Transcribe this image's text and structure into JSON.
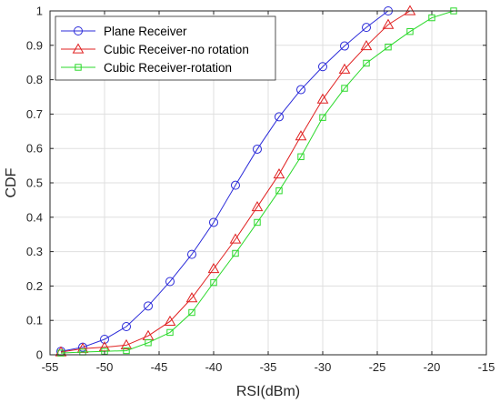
{
  "chart_data": {
    "type": "line",
    "xlabel": "RSI(dBm)",
    "ylabel": "CDF",
    "xlim": [
      -55,
      -15
    ],
    "ylim": [
      0,
      1
    ],
    "xticks": [
      -55,
      -50,
      -45,
      -40,
      -35,
      -30,
      -25,
      -20,
      -15
    ],
    "yticks": [
      0,
      0.1,
      0.2,
      0.3,
      0.4,
      0.5,
      0.6,
      0.7,
      0.8,
      0.9,
      1
    ],
    "xtick_labels": [
      "-55",
      "-50",
      "-45",
      "-40",
      "-35",
      "-30",
      "-25",
      "-20",
      "-15"
    ],
    "ytick_labels": [
      "0",
      "0.1",
      "0.2",
      "0.3",
      "0.4",
      "0.5",
      "0.6",
      "0.7",
      "0.8",
      "0.9",
      "1"
    ],
    "grid": true,
    "legend_position": "top-left",
    "series": [
      {
        "name": "Plane Receiver",
        "color": "#2b2bd9",
        "marker": "circle",
        "x": [
          -54,
          -52,
          -50,
          -48,
          -46,
          -44,
          -42,
          -40,
          -38,
          -36,
          -34,
          -32,
          -30,
          -28,
          -26,
          -24
        ],
        "y": [
          0.01,
          0.022,
          0.045,
          0.082,
          0.142,
          0.213,
          0.292,
          0.385,
          0.493,
          0.598,
          0.692,
          0.771,
          0.838,
          0.898,
          0.952,
          1.0
        ]
      },
      {
        "name": "Cubic Receiver-no rotation",
        "color": "#e02020",
        "marker": "triangle",
        "x": [
          -54,
          -52,
          -50,
          -48,
          -46,
          -44,
          -42,
          -40,
          -38,
          -36,
          -34,
          -32,
          -30,
          -28,
          -26,
          -24,
          -22
        ],
        "y": [
          0.008,
          0.018,
          0.022,
          0.028,
          0.055,
          0.097,
          0.165,
          0.25,
          0.336,
          0.43,
          0.525,
          0.636,
          0.743,
          0.83,
          0.898,
          0.96,
          1.0
        ]
      },
      {
        "name": "Cubic Receiver-rotation",
        "color": "#2bd92b",
        "marker": "square",
        "x": [
          -54,
          -52,
          -50,
          -48,
          -46,
          -44,
          -42,
          -40,
          -38,
          -36,
          -34,
          -32,
          -30,
          -28,
          -26,
          -24,
          -22,
          -20,
          -18
        ],
        "y": [
          0.005,
          0.008,
          0.01,
          0.012,
          0.035,
          0.065,
          0.123,
          0.21,
          0.295,
          0.385,
          0.477,
          0.576,
          0.69,
          0.775,
          0.848,
          0.895,
          0.94,
          0.98,
          1.0
        ]
      }
    ]
  }
}
